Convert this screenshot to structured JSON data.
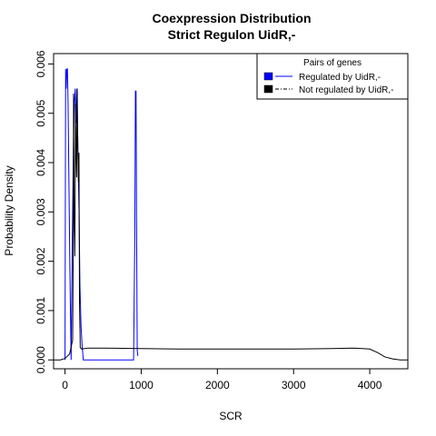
{
  "chart_data": {
    "type": "line",
    "title": "Coexpression Distribution",
    "subtitle": "Strict Regulon UidR,-",
    "xlabel": "SCR",
    "ylabel": "Probability Density",
    "xlim": [
      -150,
      4500
    ],
    "ylim": [
      -0.00018,
      0.00621
    ],
    "x_ticks": [
      0,
      1000,
      2000,
      3000,
      4000
    ],
    "x_tick_labels": [
      "0",
      "1000",
      "2000",
      "3000",
      "4000"
    ],
    "y_ticks": [
      0.0,
      0.001,
      0.002,
      0.003,
      0.004,
      0.005,
      0.006
    ],
    "y_tick_labels": [
      "0.000",
      "0.001",
      "0.002",
      "0.003",
      "0.004",
      "0.005",
      "0.006"
    ],
    "grid": false,
    "legend": {
      "title": "Pairs of genes",
      "placement": "top-right",
      "entries": [
        "Regulated by  UidR,-",
        "Not regulated by  UidR,-"
      ]
    },
    "series": [
      {
        "name": "Regulated by  UidR,-",
        "color": "#0000ff",
        "x": [
          0,
          8,
          16,
          24,
          32,
          40,
          52,
          64,
          80,
          96,
          112,
          122,
          134,
          146,
          156,
          170,
          184,
          196,
          210,
          224,
          240,
          600,
          900,
          916,
          924,
          932,
          940,
          948,
          956
        ],
        "y": [
          0.0,
          0.0059,
          0.0055,
          0.0059,
          0.0059,
          0.0052,
          0.0035,
          0.0018,
          0.0,
          0.0025,
          0.0045,
          0.0052,
          0.0055,
          0.0048,
          0.0055,
          0.0042,
          0.003,
          0.0015,
          0.0007,
          0.0003,
          0.0,
          0.0,
          0.0,
          0.0025,
          0.00545,
          0.00545,
          0.0025,
          0.0002,
          8e-05
        ]
      },
      {
        "name": "Not regulated by  UidR,-",
        "color": "#000000",
        "x": [
          -150,
          -60,
          0,
          60,
          100,
          108,
          112,
          116,
          120,
          125,
          128,
          133,
          138,
          145,
          152,
          160,
          168,
          176,
          183,
          190,
          200,
          220,
          300,
          500,
          1000,
          1500,
          2000,
          2500,
          3000,
          3500,
          3800,
          4000,
          4100,
          4200,
          4300,
          4400,
          4500
        ],
        "y": [
          0.0,
          0.0,
          3e-05,
          0.00012,
          0.0004,
          0.0023,
          0.0054,
          0.0041,
          0.0028,
          0.0025,
          0.0021,
          0.0033,
          0.0052,
          0.0042,
          0.0037,
          0.0055,
          0.0043,
          0.0036,
          0.0042,
          0.0012,
          0.00025,
          0.00022,
          0.00024,
          0.00024,
          0.00023,
          0.00022,
          0.00022,
          0.00022,
          0.00022,
          0.00023,
          0.00024,
          0.00022,
          0.00015,
          6e-05,
          2e-05,
          0.0,
          0.0
        ]
      }
    ]
  }
}
